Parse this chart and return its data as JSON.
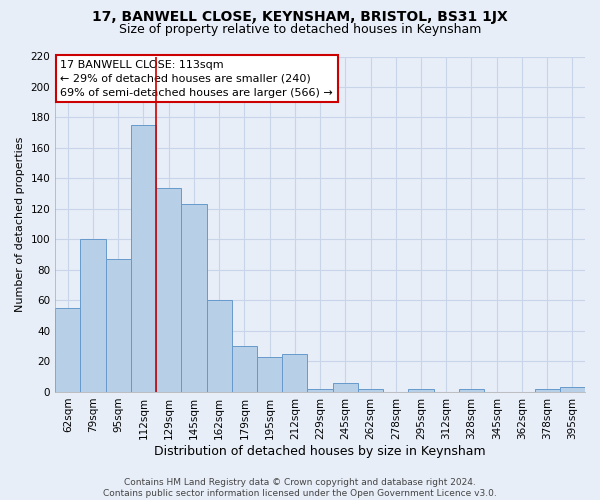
{
  "title": "17, BANWELL CLOSE, KEYNSHAM, BRISTOL, BS31 1JX",
  "subtitle": "Size of property relative to detached houses in Keynsham",
  "xlabel": "Distribution of detached houses by size in Keynsham",
  "ylabel": "Number of detached properties",
  "bar_labels": [
    "62sqm",
    "79sqm",
    "95sqm",
    "112sqm",
    "129sqm",
    "145sqm",
    "162sqm",
    "179sqm",
    "195sqm",
    "212sqm",
    "229sqm",
    "245sqm",
    "262sqm",
    "278sqm",
    "295sqm",
    "312sqm",
    "328sqm",
    "345sqm",
    "362sqm",
    "378sqm",
    "395sqm"
  ],
  "bar_values": [
    55,
    100,
    87,
    175,
    134,
    123,
    60,
    30,
    23,
    25,
    2,
    6,
    2,
    0,
    2,
    0,
    2,
    0,
    0,
    2,
    3
  ],
  "bar_color": "#b8cfe8",
  "bar_edge_color": "#6699cc",
  "vline_index": 3.5,
  "vline_color": "#cc0000",
  "ylim": [
    0,
    220
  ],
  "yticks": [
    0,
    20,
    40,
    60,
    80,
    100,
    120,
    140,
    160,
    180,
    200,
    220
  ],
  "annotation_title": "17 BANWELL CLOSE: 113sqm",
  "annotation_line1": "← 29% of detached houses are smaller (240)",
  "annotation_line2": "69% of semi-detached houses are larger (566) →",
  "annotation_box_color": "#ffffff",
  "annotation_box_edge": "#cc0000",
  "footer_line1": "Contains HM Land Registry data © Crown copyright and database right 2024.",
  "footer_line2": "Contains public sector information licensed under the Open Government Licence v3.0.",
  "background_color": "#e8eef8",
  "grid_color": "#c8d4e8",
  "title_fontsize": 10,
  "subtitle_fontsize": 9,
  "xlabel_fontsize": 9,
  "ylabel_fontsize": 8,
  "tick_fontsize": 7.5,
  "footer_fontsize": 6.5,
  "annot_fontsize": 8
}
